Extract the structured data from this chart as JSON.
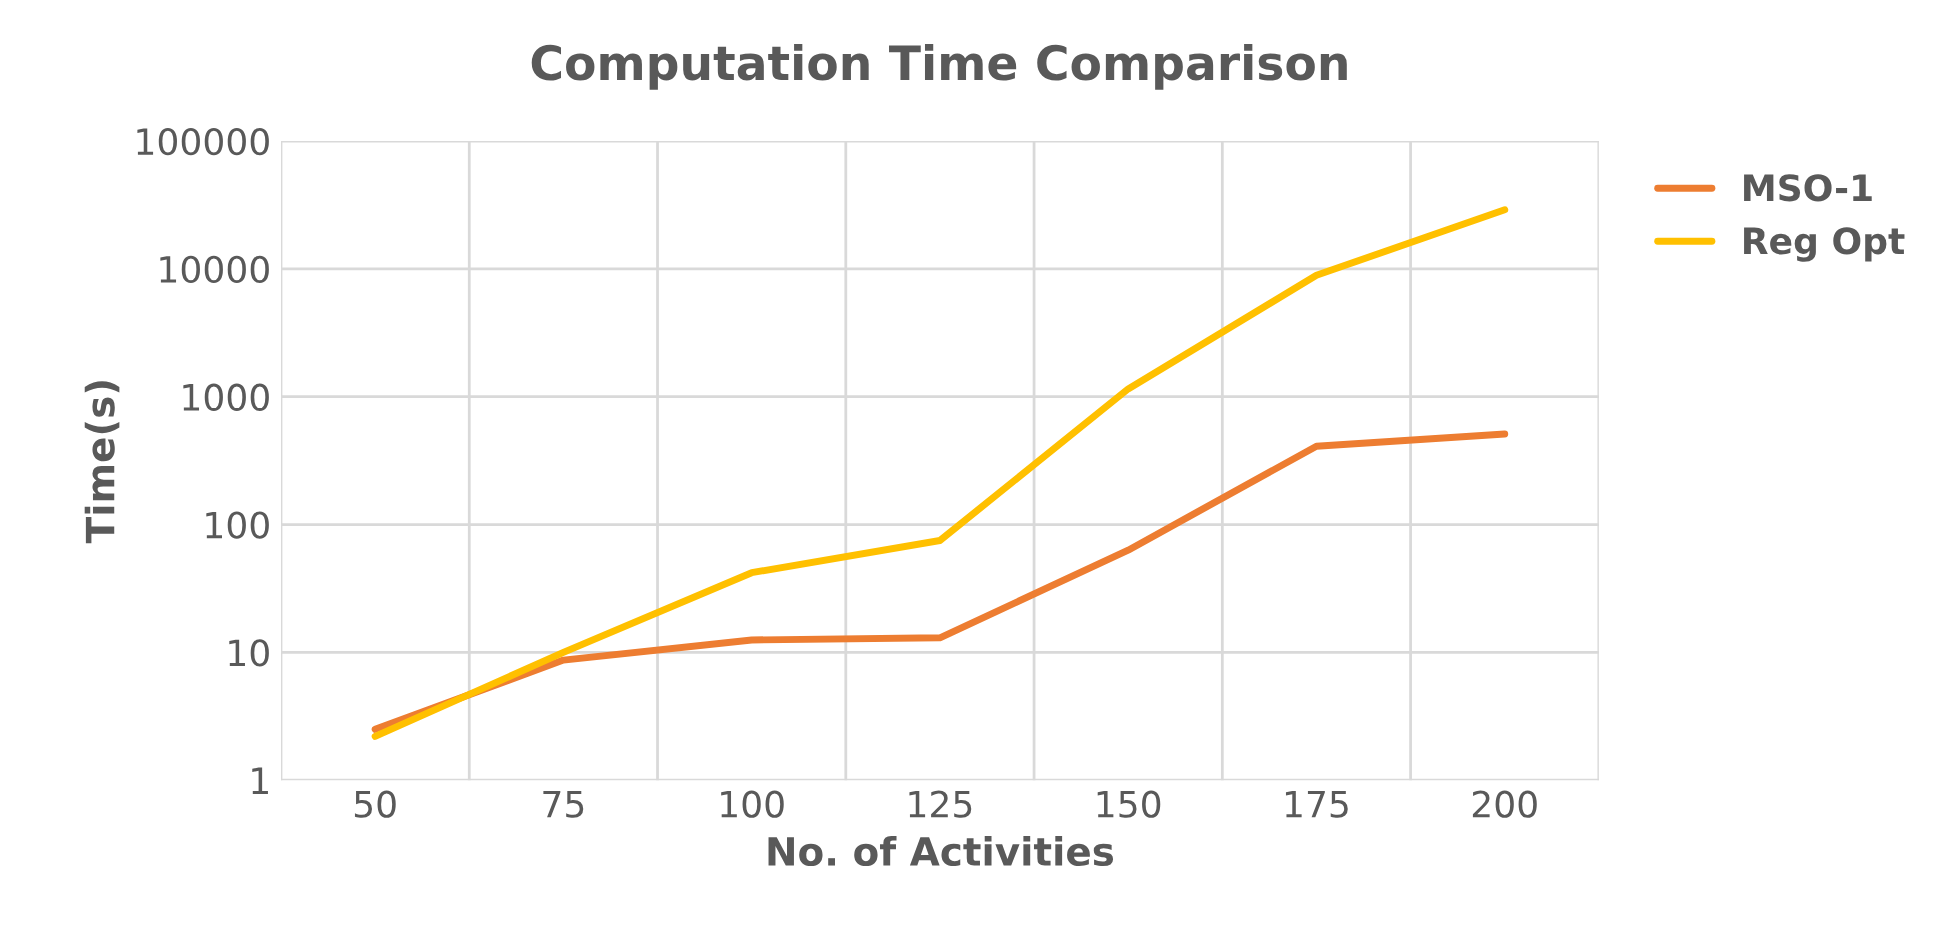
{
  "chart_data": {
    "type": "line",
    "title": "Computation Time Comparison",
    "xlabel": "No. of Activities",
    "ylabel": "Time(s)",
    "categories": [
      "50",
      "75",
      "100",
      "125",
      "150",
      "175",
      "200"
    ],
    "series": [
      {
        "name": "MSO-1",
        "color": "#ed7d31",
        "values": [
          2.5,
          8.7,
          12.5,
          13,
          63,
          410,
          510
        ]
      },
      {
        "name": "Reg Opt",
        "color": "#ffc000",
        "values": [
          2.2,
          10,
          42,
          75,
          1150,
          8900,
          29000
        ]
      }
    ],
    "log": "y",
    "ylim": [
      1,
      100000
    ],
    "yticks": [
      1,
      10,
      100,
      1000,
      10000,
      100000
    ],
    "grid": true,
    "legend": "right",
    "marker": "none",
    "line_style": "solid"
  }
}
